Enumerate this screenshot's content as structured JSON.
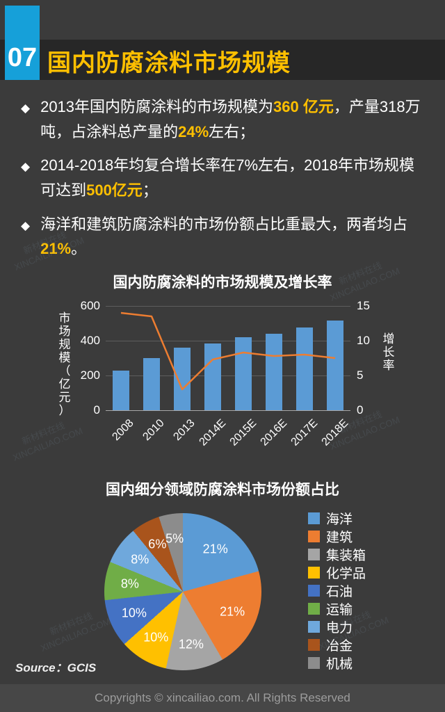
{
  "page": {
    "number": "07",
    "title": "国内防腐涂料市场规模",
    "accent_blue": "#16a0d9",
    "title_color": "#ffc000",
    "background": "#3b3b3b"
  },
  "bullets": [
    {
      "segments": [
        {
          "text": "2013年国内防腐涂料的市场规模为",
          "highlight": false
        },
        {
          "text": "360 亿元",
          "highlight": true
        },
        {
          "text": "，产量318万吨，占涂料总产量的",
          "highlight": false
        },
        {
          "text": "24%",
          "highlight": true
        },
        {
          "text": "左右；",
          "highlight": false
        }
      ]
    },
    {
      "segments": [
        {
          "text": "2014-2018年均复合增长率在7%左右，2018年市场规模可达到",
          "highlight": false
        },
        {
          "text": "500亿元",
          "highlight": true
        },
        {
          "text": "；",
          "highlight": false
        }
      ]
    },
    {
      "segments": [
        {
          "text": "海洋和建筑防腐涂料的市场份额占比重最大，两者均占",
          "highlight": false
        },
        {
          "text": "21%",
          "highlight": true
        },
        {
          "text": "。",
          "highlight": false
        }
      ]
    }
  ],
  "chart_data": [
    {
      "type": "bar",
      "title": "国内防腐涂料的市场规模及增长率",
      "categories": [
        "2008",
        "2010",
        "2013",
        "2014E",
        "2015E",
        "2016E",
        "2017E",
        "2018E"
      ],
      "series": [
        {
          "name": "市场规模",
          "type": "bar",
          "axis": "left",
          "color": "#5b9bd5",
          "values": [
            230,
            300,
            360,
            385,
            420,
            440,
            475,
            515
          ]
        },
        {
          "name": "增长率",
          "type": "line",
          "axis": "right",
          "color": "#ed7d31",
          "values": [
            14,
            13.5,
            3,
            7.3,
            8.3,
            7.8,
            8,
            7.5
          ]
        }
      ],
      "left_axis": {
        "label": "市场规模（亿元）",
        "min": 0,
        "max": 600,
        "ticks": [
          0,
          200,
          400,
          600
        ]
      },
      "right_axis": {
        "label": "增长率",
        "min": 0,
        "max": 15,
        "ticks": [
          0,
          5,
          10,
          15
        ]
      },
      "grid": true,
      "legend_position": "none"
    },
    {
      "type": "pie",
      "title": "国内细分领域防腐涂料市场份额占比",
      "slices": [
        {
          "label": "海洋",
          "value": 21,
          "color": "#5b9bd5"
        },
        {
          "label": "建筑",
          "value": 21,
          "color": "#ed7d31"
        },
        {
          "label": "集装箱",
          "value": 12,
          "color": "#a5a5a5"
        },
        {
          "label": "化学品",
          "value": 10,
          "color": "#ffc000"
        },
        {
          "label": "石油",
          "value": 10,
          "color": "#4472c4"
        },
        {
          "label": "运输",
          "value": 8,
          "color": "#70ad47"
        },
        {
          "label": "电力",
          "value": 8,
          "color": "#6fa8dc"
        },
        {
          "label": "冶金",
          "value": 6,
          "color": "#a9541c"
        },
        {
          "label": "机械",
          "value": 5,
          "color": "#8c8c8c"
        }
      ],
      "legend_position": "right"
    }
  ],
  "source": "Source：GCIS",
  "footer": "Copyrights © xincailiao.com. All Rights Reserved",
  "watermark": {
    "line1": "新材料在线",
    "line2": "XINCAILIAO.COM"
  }
}
